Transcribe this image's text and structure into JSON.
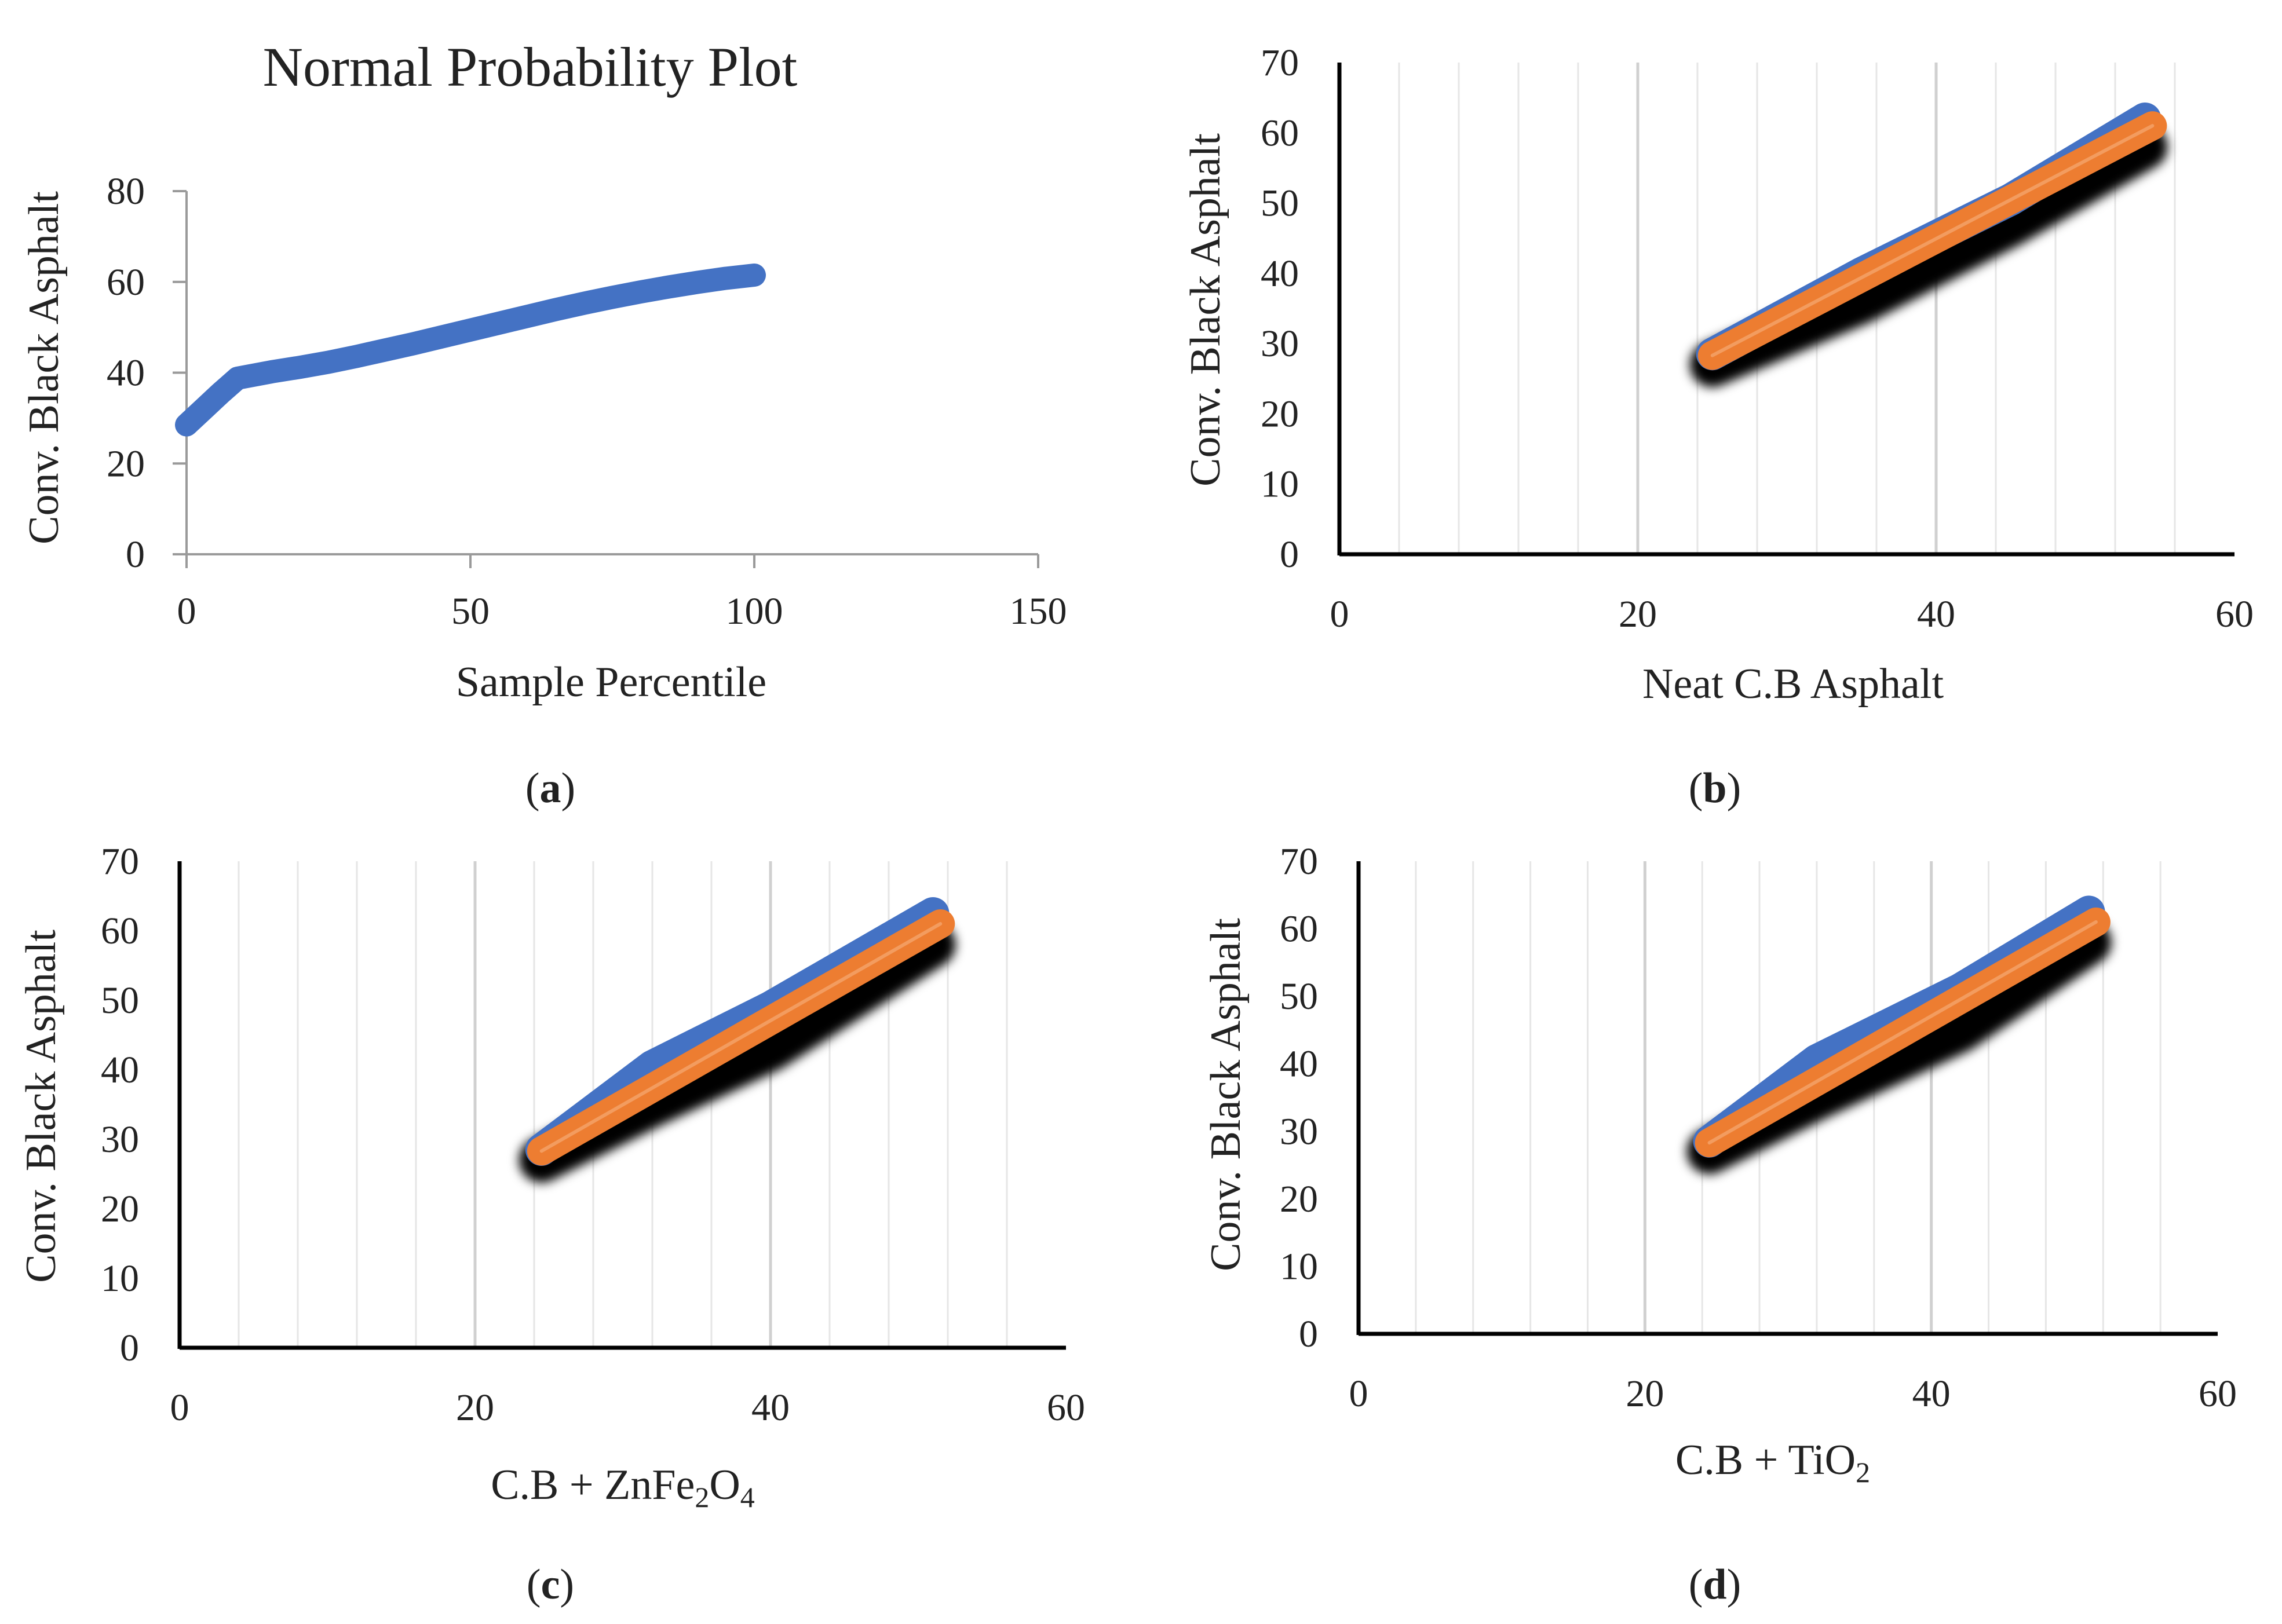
{
  "chart_data": [
    {
      "panel": "a",
      "type": "line",
      "title": "Normal Probability Plot",
      "xlabel": "Sample Percentile",
      "ylabel": "Conv. Black Asphalt",
      "xlim": [
        0,
        150
      ],
      "ylim": [
        0,
        80
      ],
      "xticks": [
        0,
        50,
        100,
        150
      ],
      "yticks": [
        0,
        20,
        40,
        60,
        80
      ],
      "grid": false,
      "series": [
        {
          "color": "#4472c4",
          "x": [
            0,
            3,
            6,
            9,
            15,
            20,
            25,
            30,
            35,
            40,
            45,
            50,
            55,
            60,
            65,
            70,
            75,
            80,
            85,
            90,
            95,
            100
          ],
          "y": [
            28.5,
            32,
            35.5,
            38.8,
            40.2,
            41.2,
            42.3,
            43.6,
            45,
            46.4,
            47.9,
            49.4,
            50.9,
            52.4,
            53.9,
            55.3,
            56.6,
            57.8,
            58.9,
            59.9,
            60.8,
            61.5
          ]
        }
      ]
    },
    {
      "panel": "b",
      "type": "scatter",
      "title": "",
      "xlabel": "Neat C.B Asphalt",
      "ylabel": "Conv. Black Asphalt",
      "xlim": [
        0,
        60
      ],
      "ylim": [
        0,
        70
      ],
      "xticks": [
        0,
        20,
        40,
        60
      ],
      "yticks": [
        0,
        10,
        20,
        30,
        40,
        50,
        60,
        70
      ],
      "grid": "vertical",
      "series": [
        {
          "role": "shadow",
          "color": "#000000",
          "x": [
            25,
            35,
            45,
            54
          ],
          "y": [
            27,
            36,
            47,
            58
          ]
        },
        {
          "role": "points",
          "color": "#4472c4",
          "x": [
            25,
            35,
            45,
            54
          ],
          "y": [
            28.5,
            40,
            50.5,
            62
          ]
        },
        {
          "role": "fit",
          "color": "#ed7d31",
          "x": [
            25,
            54.5
          ],
          "y": [
            28.3,
            61
          ]
        }
      ]
    },
    {
      "panel": "c",
      "type": "scatter",
      "title": "",
      "xlabel": "C.B + ZnFe2O4",
      "ylabel": "Conv. Black Asphalt",
      "xlim": [
        0,
        60
      ],
      "ylim": [
        0,
        70
      ],
      "xticks": [
        0,
        20,
        40,
        60
      ],
      "yticks": [
        0,
        10,
        20,
        30,
        40,
        50,
        60,
        70
      ],
      "grid": "vertical",
      "series": [
        {
          "role": "shadow",
          "color": "#000000",
          "x": [
            24.5,
            32,
            40,
            51
          ],
          "y": [
            27,
            35,
            43,
            58
          ]
        },
        {
          "role": "points",
          "color": "#4472c4",
          "x": [
            24.5,
            32,
            40,
            51
          ],
          "y": [
            28.5,
            40.5,
            49,
            62.5
          ]
        },
        {
          "role": "fit",
          "color": "#ed7d31",
          "x": [
            24.5,
            51.5
          ],
          "y": [
            28.3,
            61
          ]
        }
      ]
    },
    {
      "panel": "d",
      "type": "scatter",
      "title": "",
      "xlabel": "C.B + TiO2",
      "ylabel": "Conv. Black Asphalt",
      "xlim": [
        0,
        60
      ],
      "ylim": [
        0,
        70
      ],
      "xticks": [
        0,
        20,
        40,
        60
      ],
      "yticks": [
        0,
        10,
        20,
        30,
        40,
        50,
        60,
        70
      ],
      "grid": "vertical",
      "series": [
        {
          "role": "shadow",
          "color": "#000000",
          "x": [
            24.5,
            32,
            42,
            51
          ],
          "y": [
            27,
            35,
            45,
            58
          ]
        },
        {
          "role": "points",
          "color": "#4472c4",
          "x": [
            24.5,
            32,
            42,
            51
          ],
          "y": [
            28.5,
            40.5,
            51,
            62.5
          ]
        },
        {
          "role": "fit",
          "color": "#ed7d31",
          "x": [
            24.5,
            51.5
          ],
          "y": [
            28.3,
            61
          ]
        }
      ]
    }
  ],
  "panel_labels": [
    "a",
    "b",
    "c",
    "d"
  ],
  "xlabel_parts": {
    "c": {
      "base": "C.B + ZnFe",
      "sub1": "2",
      "mid": "O",
      "sub2": "4"
    },
    "d": {
      "base": "C.B + TiO",
      "sub1": "2"
    }
  }
}
